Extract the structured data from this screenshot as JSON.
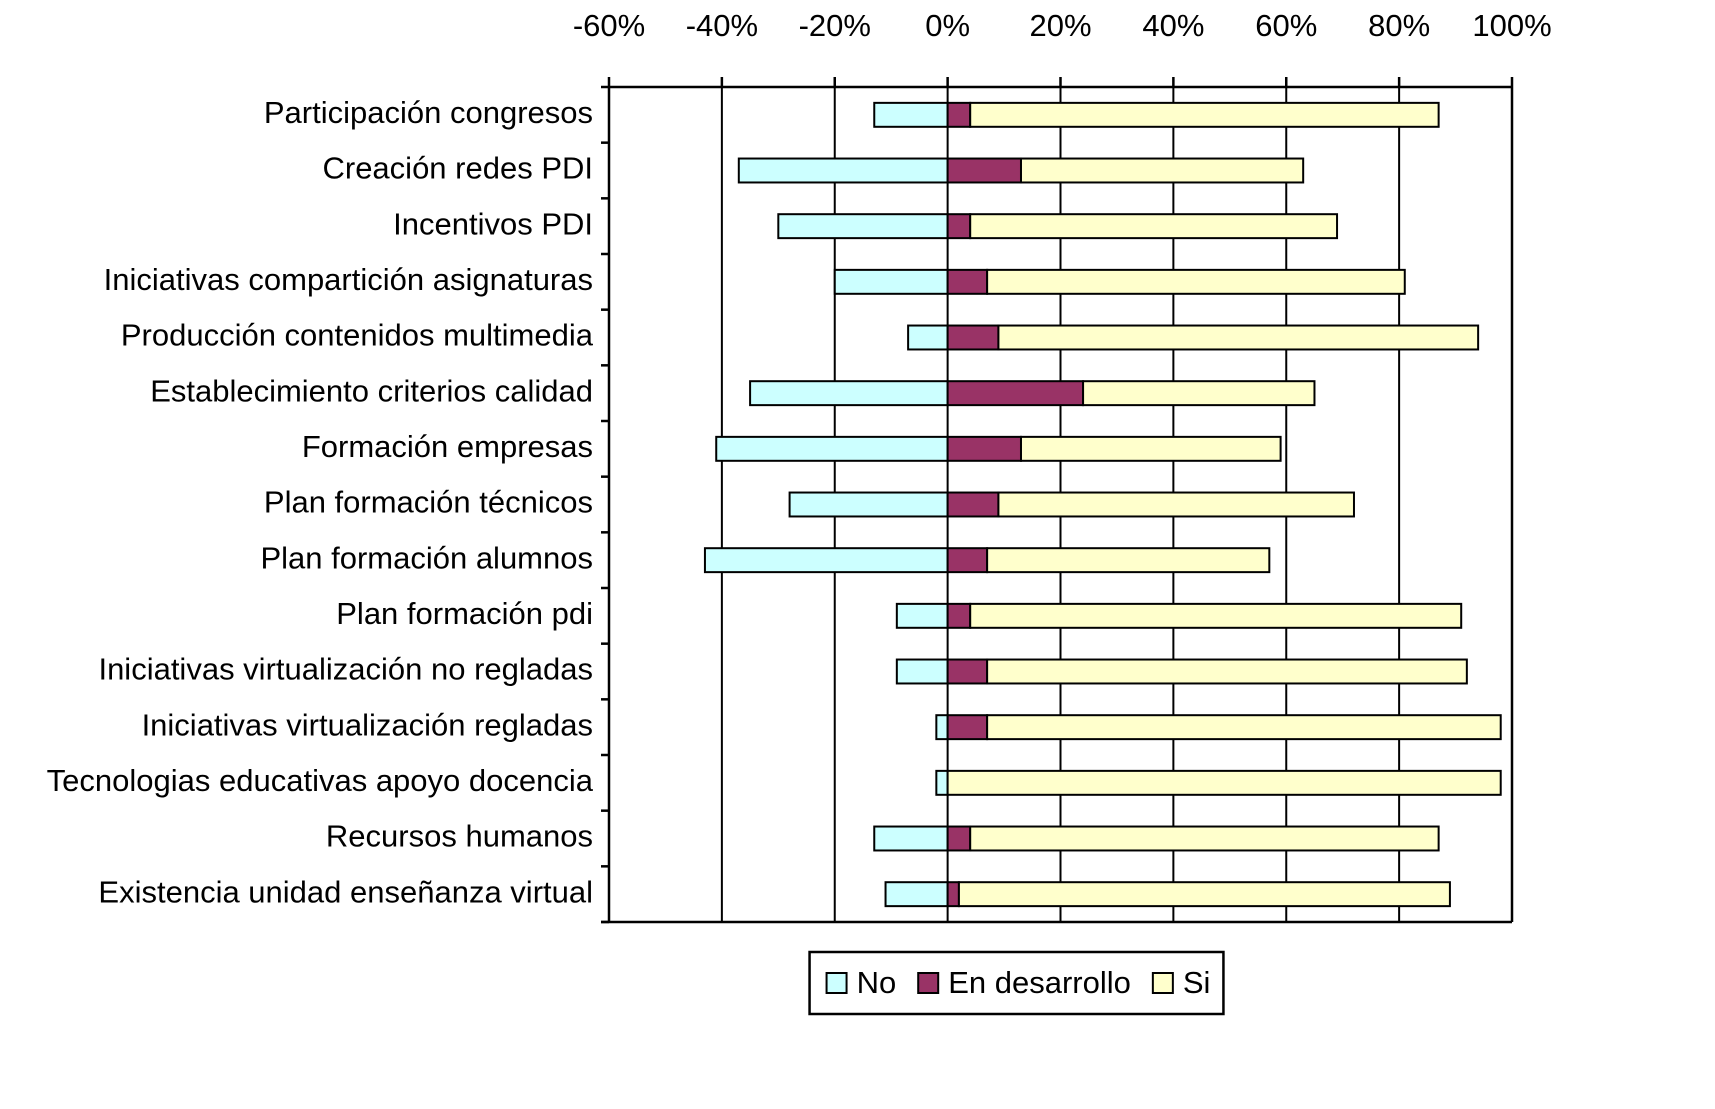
{
  "chart_data": {
    "type": "diverging_stacked_bar",
    "orientation": "horizontal",
    "categories": [
      "Participación congresos",
      "Creación redes PDI",
      "Incentivos PDI",
      "Iniciativas compartición asignaturas",
      "Producción contenidos multimedia",
      "Establecimiento criterios calidad",
      "Formación empresas",
      "Plan formación técnicos",
      "Plan formación alumnos",
      "Plan formación pdi",
      "Iniciativas virtualización no regladas",
      "Iniciativas virtualización regladas",
      "Tecnologias educativas apoyo docencia",
      "Recursos humanos",
      "Existencia unidad enseñanza virtual"
    ],
    "series": [
      {
        "name": "No",
        "color": "#ccffff",
        "values": [
          -13,
          -37,
          -30,
          -20,
          -7,
          -35,
          -41,
          -28,
          -43,
          -9,
          -9,
          -2,
          -2,
          -13,
          -11
        ]
      },
      {
        "name": "En desarrollo",
        "color": "#993366",
        "values": [
          4,
          13,
          4,
          7,
          9,
          24,
          13,
          9,
          7,
          4,
          7,
          7,
          0,
          4,
          2
        ]
      },
      {
        "name": "Si",
        "color": "#ffffcc",
        "values": [
          83,
          50,
          65,
          74,
          85,
          41,
          46,
          63,
          50,
          87,
          85,
          91,
          98,
          83,
          87
        ]
      }
    ],
    "xlim": [
      -60,
      100
    ],
    "xticks": [
      {
        "value": -60,
        "label": "-60%"
      },
      {
        "value": -40,
        "label": "-40%"
      },
      {
        "value": -20,
        "label": "-20%"
      },
      {
        "value": 0,
        "label": "0%"
      },
      {
        "value": 20,
        "label": "20%"
      },
      {
        "value": 40,
        "label": "40%"
      },
      {
        "value": 60,
        "label": "60%"
      },
      {
        "value": 80,
        "label": "80%"
      },
      {
        "value": 100,
        "label": "100%"
      }
    ],
    "grid": true,
    "legend": "bottom"
  }
}
